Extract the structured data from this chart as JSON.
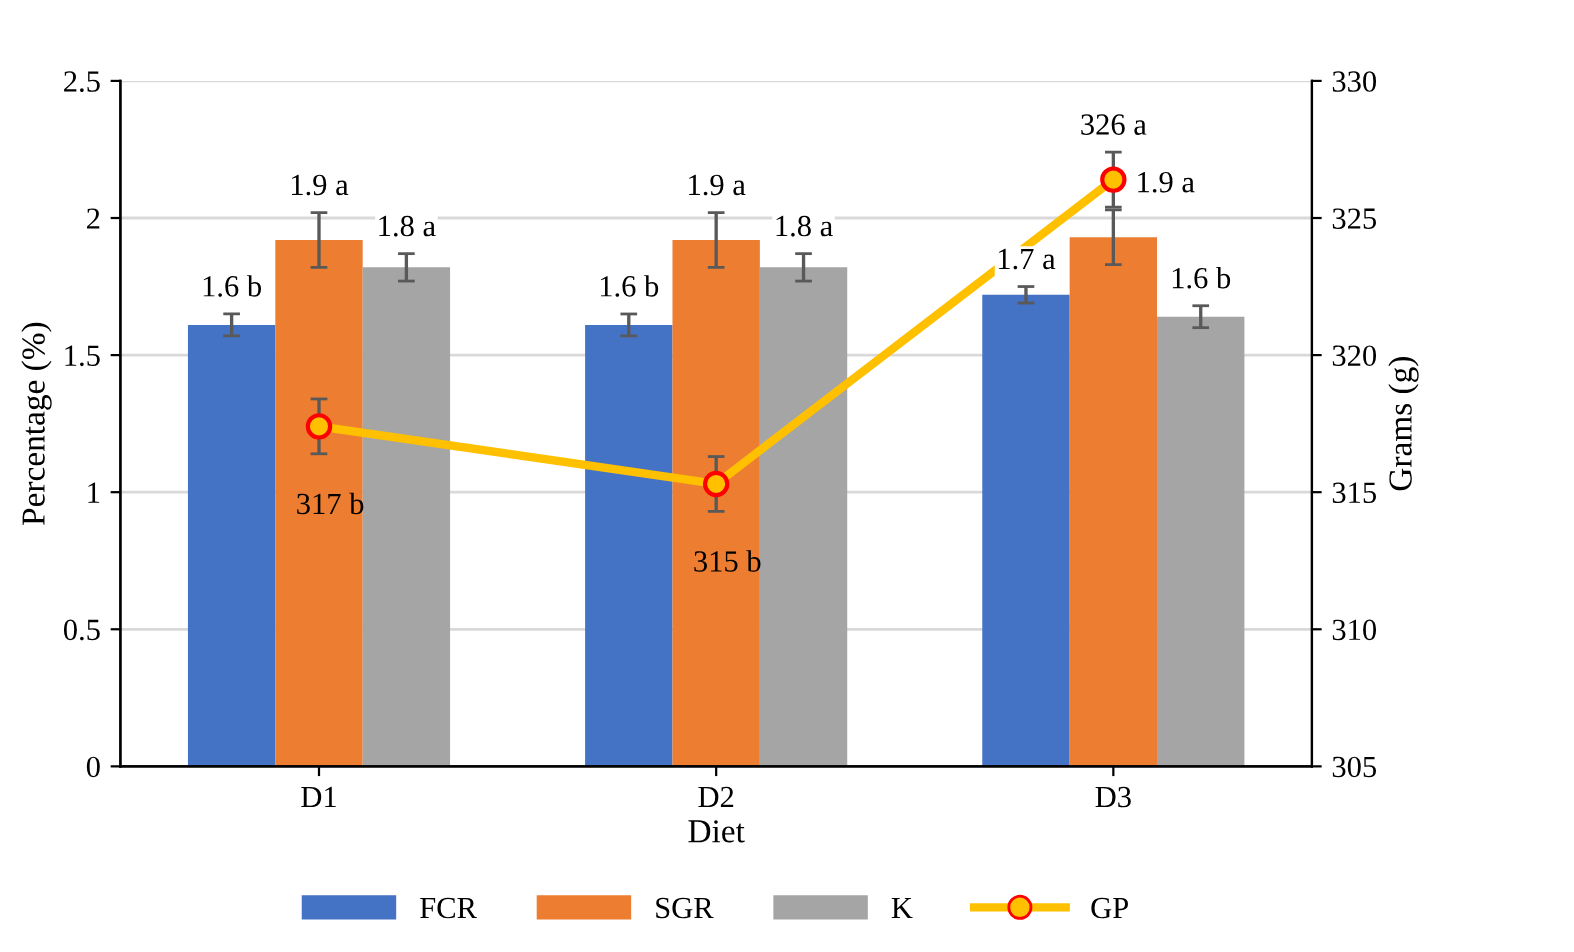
{
  "chart_data": {
    "type": "bar",
    "xlabel": "Diet",
    "ylabel": "Percentage (%)",
    "y2label": "Grams (g)",
    "categories": [
      "D1",
      "D2",
      "D3"
    ],
    "series": [
      {
        "name": "FCR",
        "color": "#4472c4",
        "values": [
          1.61,
          1.61,
          1.72
        ],
        "errors": [
          0.04,
          0.04,
          0.03
        ],
        "value_labels": [
          "1.6 b",
          "1.6 b",
          "1.7 a"
        ]
      },
      {
        "name": "SGR",
        "color": "#ed7d31",
        "values": [
          1.92,
          1.92,
          1.93
        ],
        "errors": [
          0.1,
          0.1,
          0.1
        ],
        "value_labels": [
          "1.9 a",
          "1.9 a",
          "1.9 a"
        ]
      },
      {
        "name": "K",
        "color": "#a5a5a5",
        "values": [
          1.82,
          1.82,
          1.64
        ],
        "errors": [
          0.05,
          0.05,
          0.04
        ],
        "value_labels": [
          "1.8 a",
          "1.8 a",
          "1.6 b"
        ]
      },
      {
        "name": "GP",
        "type": "line",
        "axis": "y2",
        "color": "#ffc000",
        "marker": "circle",
        "values": [
          317.4,
          315.3,
          326.4
        ],
        "errors": [
          1.0,
          1.0,
          1.0
        ],
        "value_labels": [
          "317 b",
          "315 b",
          "326 a"
        ]
      }
    ],
    "ylim": [
      0,
      2.5
    ],
    "yticks": [
      0,
      0.5,
      1,
      1.5,
      2,
      2.5
    ],
    "y2lim": [
      305,
      330
    ],
    "y2ticks": [
      305,
      310,
      315,
      320,
      325,
      330
    ],
    "grid": "y",
    "legend": "bottom"
  }
}
